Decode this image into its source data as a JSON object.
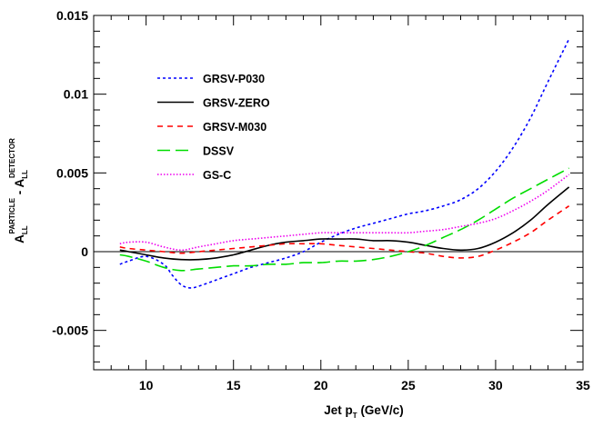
{
  "chart_data": {
    "type": "line",
    "title": "",
    "xlabel": "Jet p_T (GeV/c)",
    "xlabel_parts": {
      "main": "Jet p",
      "sub": "T",
      "rest": " (GeV/c)"
    },
    "ylabel": "A_LL^PARTICLE - A_LL^DETECTOR",
    "ylabel_parts": {
      "left_main": "A",
      "left_sub": "LL",
      "left_sup": "PARTICLE",
      "minus": " - ",
      "right_main": "A",
      "right_sub": "LL",
      "right_sup": "DETECTOR"
    },
    "xlim": [
      7,
      35
    ],
    "ylim": [
      -0.0075,
      0.015
    ],
    "x_ticks": [
      10,
      15,
      20,
      25,
      30,
      35
    ],
    "x_tick_labels": [
      "10",
      "15",
      "20",
      "25",
      "30",
      "35"
    ],
    "y_ticks": [
      -0.005,
      0,
      0.005,
      0.01,
      0.015
    ],
    "y_tick_labels": [
      "-0.005",
      "0",
      "0.005",
      "0.01",
      "0.015"
    ],
    "zero_line": true,
    "grid": false,
    "legend_position": "top-left",
    "series": [
      {
        "name": "GRSV-P030",
        "color": "#0000ff",
        "dash": "dotted",
        "x": [
          8.5,
          9,
          10,
          11,
          11.5,
          12,
          12.5,
          13,
          14,
          15,
          16,
          17,
          18,
          19,
          20,
          21,
          22,
          23,
          24,
          25,
          26,
          27,
          28,
          29,
          30,
          31,
          32,
          33,
          34.2
        ],
        "y": [
          -0.0008,
          -0.0006,
          -0.0003,
          -0.0008,
          -0.0015,
          -0.0021,
          -0.0023,
          -0.0022,
          -0.0018,
          -0.0014,
          -0.001,
          -0.0007,
          -0.0004,
          0.0,
          0.0006,
          0.0011,
          0.0015,
          0.0018,
          0.0021,
          0.0024,
          0.0026,
          0.0029,
          0.0033,
          0.004,
          0.0051,
          0.0066,
          0.0085,
          0.0108,
          0.0135
        ]
      },
      {
        "name": "GRSV-ZERO",
        "color": "#000000",
        "dash": "solid",
        "x": [
          8.5,
          9,
          10,
          11,
          12,
          13,
          14,
          15,
          16,
          17,
          18,
          19,
          20,
          21,
          22,
          23,
          24,
          25,
          26,
          27,
          28,
          29,
          30,
          31,
          32,
          33,
          34.2
        ],
        "y": [
          0.0001,
          0.0,
          -0.0002,
          -0.0004,
          -0.0005,
          -0.0005,
          -0.0004,
          -0.0002,
          0.0001,
          0.0004,
          0.0006,
          0.0007,
          0.0008,
          0.0008,
          0.0008,
          0.0007,
          0.0007,
          0.0006,
          0.0004,
          0.0002,
          0.0001,
          0.0002,
          0.0006,
          0.0012,
          0.002,
          0.003,
          0.0041
        ]
      },
      {
        "name": "GRSV-M030",
        "color": "#ff0000",
        "dash": "dashed",
        "x": [
          8.5,
          9,
          10,
          11,
          12,
          13,
          14,
          15,
          16,
          17,
          18,
          19,
          20,
          21,
          22,
          23,
          24,
          25,
          26,
          27,
          28,
          29,
          30,
          31,
          32,
          33,
          34.2
        ],
        "y": [
          0.0003,
          0.0002,
          0.0001,
          0.0,
          -0.0001,
          0.0,
          0.0001,
          0.0002,
          0.0003,
          0.0004,
          0.0005,
          0.0005,
          0.0005,
          0.0004,
          0.0003,
          0.0002,
          0.0001,
          0.0,
          -0.0001,
          -0.0003,
          -0.0004,
          -0.0003,
          0.0001,
          0.0006,
          0.0012,
          0.002,
          0.0029
        ]
      },
      {
        "name": "DSSV",
        "color": "#00dd00",
        "dash": "long-dash",
        "x": [
          8.5,
          9,
          10,
          11,
          12,
          13,
          14,
          15,
          16,
          17,
          18,
          19,
          20,
          21,
          22,
          23,
          24,
          25,
          26,
          27,
          28,
          29,
          30,
          31,
          32,
          33,
          34.2
        ],
        "y": [
          -0.0002,
          -0.0003,
          -0.0006,
          -0.001,
          -0.0012,
          -0.0011,
          -0.001,
          -0.0009,
          -0.0009,
          -0.0008,
          -0.0008,
          -0.0007,
          -0.0007,
          -0.0006,
          -0.0006,
          -0.0005,
          -0.0003,
          0.0,
          0.0004,
          0.0009,
          0.0014,
          0.002,
          0.0027,
          0.0034,
          0.004,
          0.0046,
          0.0053
        ]
      },
      {
        "name": "GS-C",
        "color": "#ee00ee",
        "dash": "fine-dotted",
        "x": [
          8.5,
          9,
          10,
          11,
          12,
          13,
          14,
          15,
          16,
          17,
          18,
          19,
          20,
          21,
          22,
          23,
          24,
          25,
          26,
          27,
          28,
          29,
          30,
          31,
          32,
          33,
          34.2
        ],
        "y": [
          0.0005,
          0.0006,
          0.0006,
          0.0003,
          0.0001,
          0.0003,
          0.0005,
          0.0007,
          0.0008,
          0.0009,
          0.001,
          0.0011,
          0.0012,
          0.0012,
          0.0012,
          0.0012,
          0.0012,
          0.0012,
          0.0013,
          0.0014,
          0.0016,
          0.0018,
          0.0021,
          0.0026,
          0.0032,
          0.0039,
          0.0049
        ]
      }
    ]
  }
}
